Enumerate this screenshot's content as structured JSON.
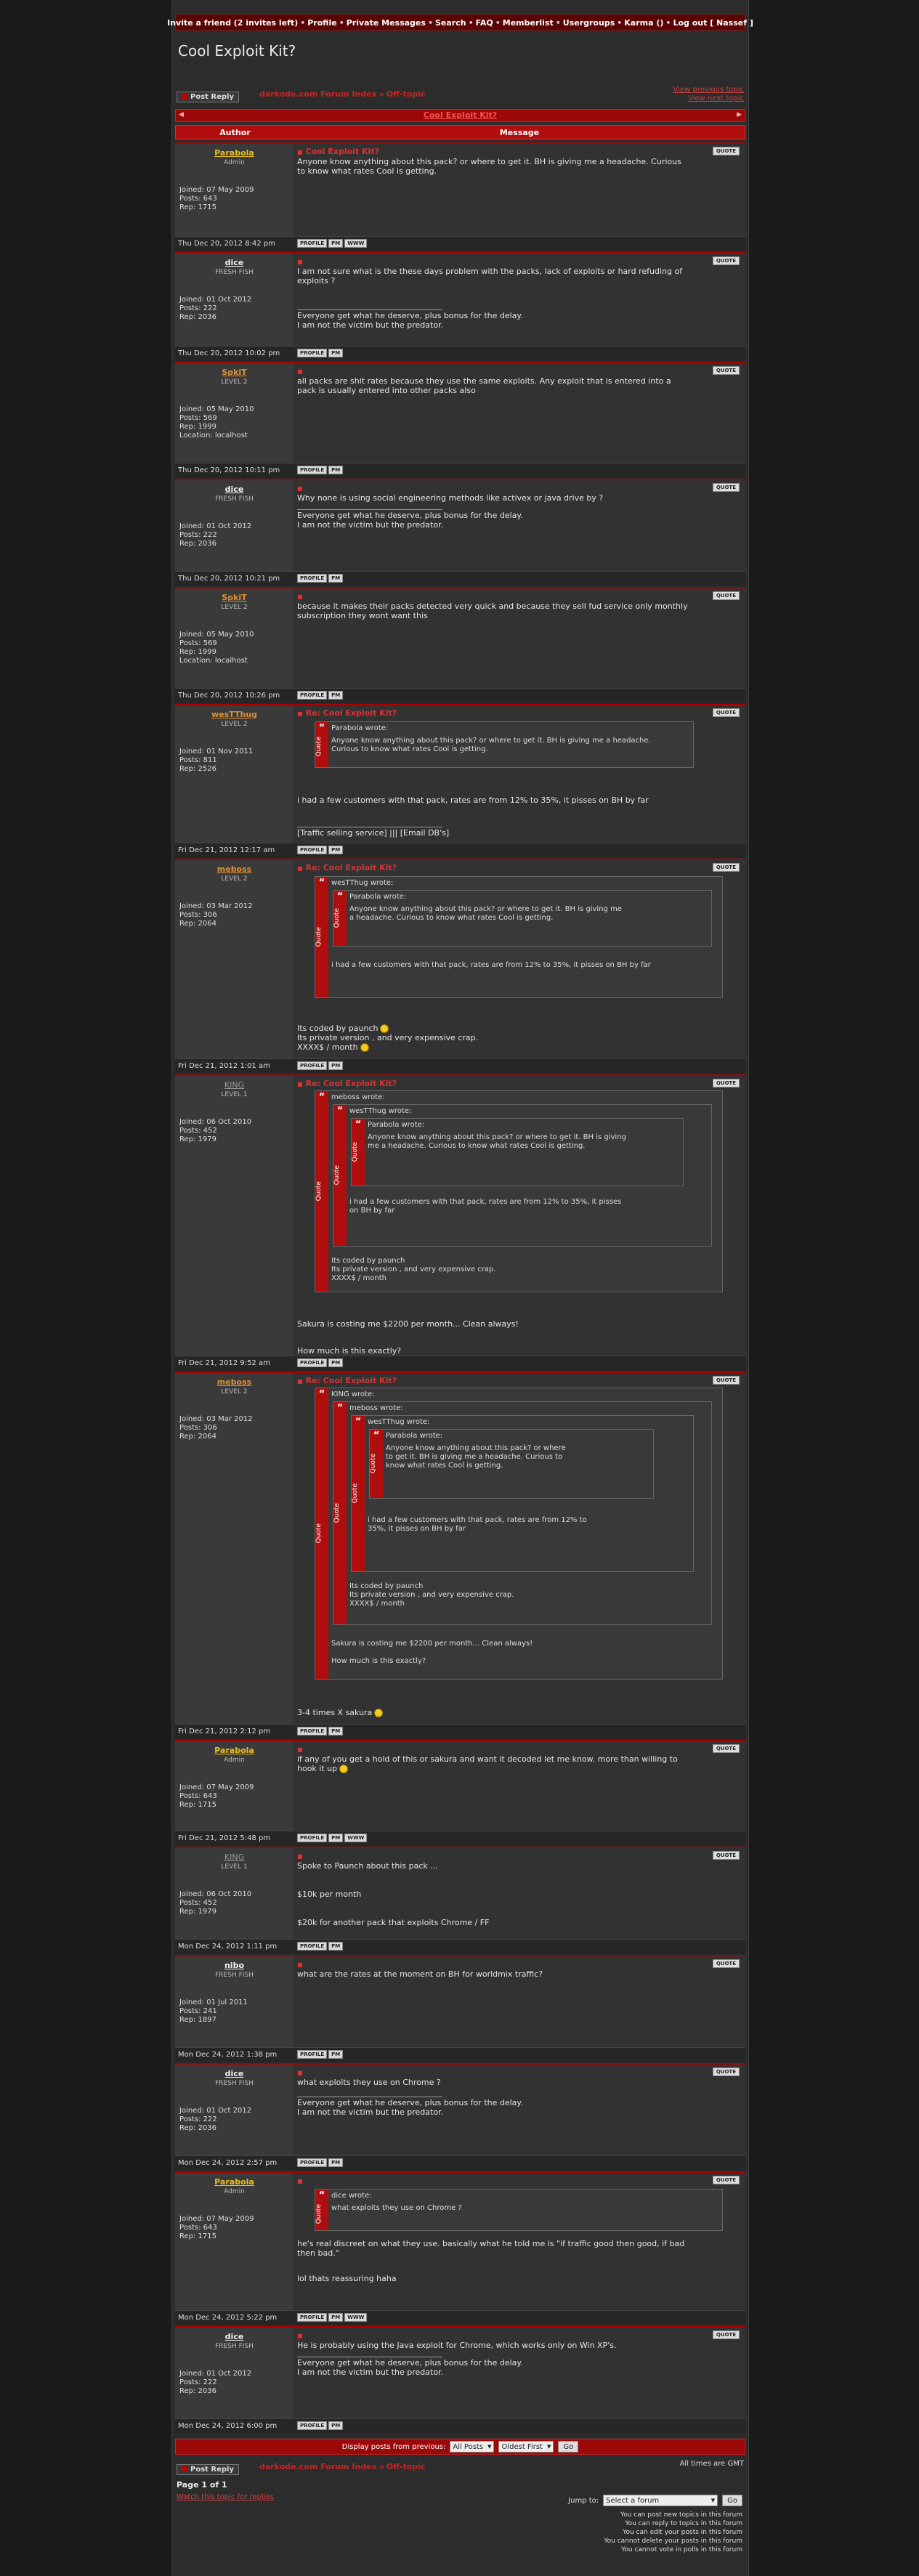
{
  "topnav": [
    "Invite a friend (2 invites left)",
    "Profile",
    "Private Messages",
    "Search",
    "FAQ",
    "Memberlist",
    "Usergroups",
    "Karma ()",
    "Log out [ Nassef ]"
  ],
  "title": "Cool Exploit Kit?",
  "post_reply": "Post Reply",
  "breadcrumb": {
    "index": "darkode.com Forum Index",
    "section": "Off-topic"
  },
  "toplinks": {
    "prev": "View previous topic",
    "next": "View next topic"
  },
  "thread_header": "Cool Exploit Kit?",
  "columns": {
    "author": "Author",
    "message": "Message"
  },
  "buttons": {
    "quote": "QUOTE",
    "profile": "PROFILE",
    "pm": "PM",
    "www": "WWW"
  },
  "quote_label": "Quote",
  "posts": [
    {
      "user": "Parabola",
      "rank": "Admin",
      "joined": "Joined: 07 May 2009",
      "posts": "Posts: 643",
      "rep": "Rep: 1715",
      "location": "",
      "date": "Thu Dec 20, 2012 8:42 pm",
      "subject": "Cool Exploit Kit?",
      "lines": [
        "Anyone know anything about this pack? or where to get it. BH is giving me a headache. Curious",
        "to know what rates Cool is getting."
      ],
      "sig": []
    },
    {
      "user": "dice",
      "rank": "FRESH FISH",
      "joined": "Joined: 01 Oct 2012",
      "posts": "Posts: 222",
      "rep": "Rep: 2036",
      "location": "",
      "date": "Thu Dec 20, 2012 10:02 pm",
      "subject": "",
      "lines": [
        "I am not sure what is the these days problem with the packs, lack of exploits or hard refuding of",
        "exploits ?"
      ],
      "sig": [
        "Everyone get what he deserve, plus bonus for the delay.",
        "I am not the victim but the predator."
      ]
    },
    {
      "user": "SpkiT",
      "rank": "LEVEL 2",
      "joined": "Joined: 05 May 2010",
      "posts": "Posts: 569",
      "rep": "Rep: 1999",
      "location": "Location: localhost",
      "date": "Thu Dec 20, 2012 10:11 pm",
      "subject": "",
      "lines": [
        "all packs are shit rates because they use the same exploits. Any exploit that is entered into a",
        "pack is usually entered into other packs also"
      ],
      "sig": []
    },
    {
      "user": "dice",
      "rank": "FRESH FISH",
      "joined": "Joined: 01 Oct 2012",
      "posts": "Posts: 222",
      "rep": "Rep: 2036",
      "location": "",
      "date": "Thu Dec 20, 2012 10:21 pm",
      "subject": "",
      "lines": [
        "Why none is using social engineering methods like activex or java drive by ?"
      ],
      "sig": [
        "Everyone get what he deserve, plus bonus for the delay.",
        "I am not the victim but the predator."
      ]
    },
    {
      "user": "SpkiT",
      "rank": "LEVEL 2",
      "joined": "Joined: 05 May 2010",
      "posts": "Posts: 569",
      "rep": "Rep: 1999",
      "location": "Location: localhost",
      "date": "Thu Dec 20, 2012 10:26 pm",
      "subject": "",
      "lines": [
        "because it makes their packs detected very quick and because they sell fud service only monthly",
        "subscription they wont want this"
      ],
      "sig": []
    },
    {
      "user": "wesTThug",
      "rank": "LEVEL 2",
      "joined": "Joined: 01 Nov 2011",
      "posts": "Posts: 811",
      "rep": "Rep: 2526",
      "location": "",
      "date": "Fri Dec 21, 2012 12:17 am",
      "subject": "Re: Cool Exploit Kit?",
      "lines": [
        "i had a few customers with that pack, rates are from 12% to 35%, it pisses on BH by far"
      ],
      "sig": [
        "[Traffic selling service] ||| [Email DB's]"
      ]
    },
    {
      "user": "meboss",
      "rank": "LEVEL 2",
      "joined": "Joined: 03 Mar 2012",
      "posts": "Posts: 306",
      "rep": "Rep: 2064",
      "location": "",
      "date": "Fri Dec 21, 2012 1:01 am",
      "subject": "Re: Cool Exploit Kit?",
      "lines": [
        "Its coded by paunch",
        "Its private version , and very expensive crap.",
        "XXXX$ / month"
      ],
      "sig": []
    },
    {
      "user": "KING",
      "rank": "LEVEL 1",
      "joined": "Joined: 06 Oct 2010",
      "posts": "Posts: 452",
      "rep": "Rep: 1979",
      "location": "",
      "date": "Fri Dec 21, 2012 9:52 am",
      "subject": "Re: Cool Exploit Kit?",
      "lines": [
        "Sakura is costing me $2200 per month... Clean always!",
        "How much is this exactly?"
      ],
      "sig": []
    },
    {
      "user": "meboss",
      "rank": "LEVEL 2",
      "joined": "Joined: 03 Mar 2012",
      "posts": "Posts: 306",
      "rep": "Rep: 2064",
      "location": "",
      "date": "Fri Dec 21, 2012 2:12 pm",
      "subject": "Re: Cool Exploit Kit?",
      "lines": [
        "3-4 times X sakura"
      ],
      "sig": []
    },
    {
      "user": "Parabola",
      "rank": "Admin",
      "joined": "Joined: 07 May 2009",
      "posts": "Posts: 643",
      "rep": "Rep: 1715",
      "location": "",
      "date": "Fri Dec 21, 2012 5:48 pm",
      "subject": "",
      "lines": [
        "if any of you get a hold of this or sakura and want it decoded let me know. more than willing to",
        "hook it up"
      ],
      "sig": []
    },
    {
      "user": "KING",
      "rank": "LEVEL 1",
      "joined": "Joined: 06 Oct 2010",
      "posts": "Posts: 452",
      "rep": "Rep: 1979",
      "location": "",
      "date": "Mon Dec 24, 2012 1:11 pm",
      "subject": "",
      "lines": [
        "Spoke to Paunch about this pack ...",
        "$10k per month",
        "$20k for another pack that exploits Chrome / FF"
      ],
      "sig": []
    },
    {
      "user": "nibo",
      "rank": "FRESH FISH",
      "joined": "Joined: 01 Jul 2011",
      "posts": "Posts: 241",
      "rep": "Rep: 1897",
      "location": "",
      "date": "Mon Dec 24, 2012 1:38 pm",
      "subject": "",
      "lines": [
        "what are the rates at the moment on BH for worldmix traffic?"
      ],
      "sig": []
    },
    {
      "user": "dice",
      "rank": "FRESH FISH",
      "joined": "Joined: 01 Oct 2012",
      "posts": "Posts: 222",
      "rep": "Rep: 2036",
      "location": "",
      "date": "Mon Dec 24, 2012 2:57 pm",
      "subject": "",
      "lines": [
        "what exploits they use on Chrome ?"
      ],
      "sig": [
        "Everyone get what he deserve, plus bonus for the delay.",
        "I am not the victim but the predator."
      ]
    },
    {
      "user": "Parabola",
      "rank": "Admin",
      "joined": "Joined: 07 May 2009",
      "posts": "Posts: 643",
      "rep": "Rep: 1715",
      "location": "",
      "date": "Mon Dec 24, 2012 5:22 pm",
      "subject": "",
      "lines": [
        "he's real discreet on what they use. basically what he told me is \"if traffic good then good, if bad",
        "then bad.\"",
        "lol thats reassuring haha"
      ],
      "sig": []
    },
    {
      "user": "dice",
      "rank": "FRESH FISH",
      "joined": "Joined: 01 Oct 2012",
      "posts": "Posts: 222",
      "rep": "Rep: 2036",
      "location": "",
      "date": "Mon Dec 24, 2012 6:00 pm",
      "subject": "",
      "lines": [
        "He is probably using the Java exploit for Chrome, which works only on Win XP's."
      ],
      "sig": [
        "Everyone get what he deserve, plus bonus for the delay.",
        "I am not the victim but the predator."
      ]
    }
  ],
  "quotes": {
    "parabola_wrote": "Parabola wrote:",
    "westthug_wrote": "wesTThug wrote:",
    "meboss_wrote": "meboss wrote:",
    "king_wrote": "KING wrote:",
    "dice_wrote": "dice wrote:",
    "parabola_text": [
      "Anyone know anything about this pack? or where to get it. BH is giving me a headache.",
      "Curious to know what rates Cool is getting."
    ],
    "parabola_text_narrow": [
      "Anyone know anything about this pack? or where to get it. BH is giving me",
      "a headache. Curious to know what rates Cool is getting."
    ],
    "parabola_text_narrower": [
      "Anyone know anything about this pack? or where to get it. BH is giving",
      "me a headache. Curious to know what rates Cool is getting."
    ],
    "parabola_text_narrowest": [
      "Anyone know anything about this pack? or where",
      "to get it. BH is giving me a headache. Curious to",
      "know what rates Cool is getting."
    ],
    "westthug_text": "i had a few customers with that pack, rates are from 12% to 35%, it pisses on BH by far",
    "westthug_text_wrap": [
      "i had a few customers with that pack, rates are from 12% to 35%, it pisses",
      "on BH by far"
    ],
    "westthug_text_wrap2": [
      "i had a few customers with that pack, rates are from 12% to",
      "35%, it pisses on BH by far"
    ],
    "meboss_text": [
      "Its coded by paunch",
      "Its private version , and very expensive crap.",
      "XXXX$ / month"
    ],
    "king_text": [
      "Sakura is costing me $2200 per month... Clean always!",
      "How much is this exactly?"
    ],
    "dice_text": "what exploits they use on Chrome ?"
  },
  "bottom": {
    "display_label": "Display posts from previous:",
    "all_posts": "All Posts",
    "oldest_first": "Oldest First",
    "go": "Go",
    "timezone": "All times are GMT",
    "page": "Page 1 of 1",
    "watch": "Watch this topic for replies",
    "jump_to": "Jump to:",
    "select_forum": "Select a forum",
    "perms": [
      "You can post new topics in this forum",
      "You can reply to topics in this forum",
      "You can edit your posts in this forum",
      "You cannot delete your posts in this forum",
      "You cannot vote in polls in this forum"
    ]
  },
  "colors": {
    "accent": "#b00e0e",
    "admin_name": "#e8c020",
    "user_name": "#f0f0f0",
    "level_name": "#e09030"
  }
}
